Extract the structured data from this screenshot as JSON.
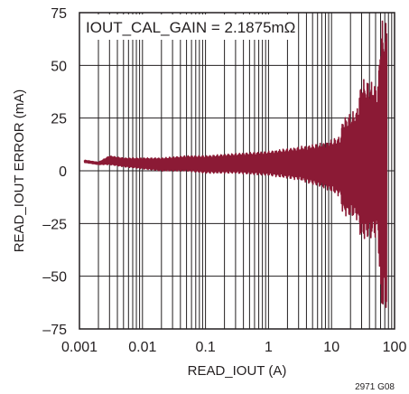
{
  "chart_data": {
    "type": "line",
    "xlabel": "READ_IOUT (A)",
    "ylabel": "READ_IOUT ERROR (mA)",
    "x_scale": "log",
    "xlim": [
      0.001,
      100
    ],
    "ylim": [
      -75,
      75
    ],
    "x_ticks": [
      {
        "value": 0.001,
        "label": "0.001"
      },
      {
        "value": 0.01,
        "label": "0.01"
      },
      {
        "value": 0.1,
        "label": "0.1"
      },
      {
        "value": 1,
        "label": "1"
      },
      {
        "value": 10,
        "label": "10"
      },
      {
        "value": 100,
        "label": "100"
      }
    ],
    "y_ticks": [
      {
        "value": 75,
        "label": "75"
      },
      {
        "value": 50,
        "label": "50"
      },
      {
        "value": 25,
        "label": "25"
      },
      {
        "value": 0,
        "label": "0"
      },
      {
        "value": -25,
        "label": "–25"
      },
      {
        "value": -50,
        "label": "–50"
      },
      {
        "value": -75,
        "label": "–75"
      }
    ],
    "grid": true,
    "annotation": "IOUT_CAL_GAIN = 2.1875mΩ",
    "figure_code": "2971 G08",
    "series_color": "#8b1a35",
    "envelope": [
      {
        "x": 0.0012,
        "upper": 5,
        "lower": 4
      },
      {
        "x": 0.002,
        "upper": 4,
        "lower": 3
      },
      {
        "x": 0.003,
        "upper": 7,
        "lower": 3
      },
      {
        "x": 0.005,
        "upper": 6,
        "lower": 2
      },
      {
        "x": 0.01,
        "upper": 6,
        "lower": 1
      },
      {
        "x": 0.02,
        "upper": 6,
        "lower": 0
      },
      {
        "x": 0.05,
        "upper": 7,
        "lower": 0
      },
      {
        "x": 0.1,
        "upper": 7,
        "lower": -1
      },
      {
        "x": 0.3,
        "upper": 8,
        "lower": -1
      },
      {
        "x": 1,
        "upper": 9,
        "lower": -2
      },
      {
        "x": 3,
        "upper": 11,
        "lower": -4
      },
      {
        "x": 8,
        "upper": 13,
        "lower": -8
      },
      {
        "x": 14,
        "upper": 16,
        "lower": -12
      },
      {
        "x": 15,
        "upper": 24,
        "lower": -20
      },
      {
        "x": 25,
        "upper": 28,
        "lower": -22
      },
      {
        "x": 30,
        "upper": 42,
        "lower": -32
      },
      {
        "x": 55,
        "upper": 40,
        "lower": -30
      },
      {
        "x": 60,
        "upper": 68,
        "lower": -65
      },
      {
        "x": 75,
        "upper": 68,
        "lower": -65
      }
    ]
  }
}
